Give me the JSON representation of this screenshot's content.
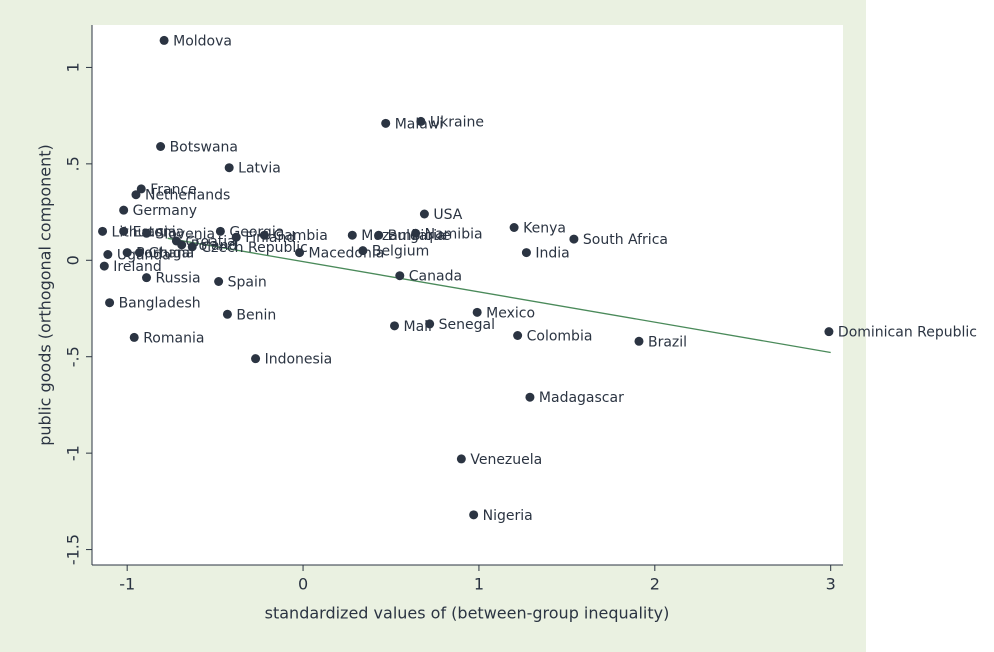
{
  "chart_data": {
    "type": "scatter",
    "x_label": "standardized values of (between-group inequality)",
    "y_label": "public goods (orthogonal component)",
    "xlim": [
      -1.2,
      3.07
    ],
    "ylim": [
      -1.58,
      1.22
    ],
    "xticks": [
      -1,
      0,
      1,
      2,
      3
    ],
    "yticks": [
      {
        "value": -1.5,
        "label": "-1.5"
      },
      -1,
      {
        "value": -0.5,
        "label": "-.5"
      },
      0,
      {
        "value": 0.5,
        "label": ".5"
      },
      1
    ],
    "color": "#2b3442",
    "points": [
      {
        "label": "Moldova",
        "x": -0.79,
        "y": 1.14
      },
      {
        "label": "Malawi",
        "x": 0.47,
        "y": 0.71
      },
      {
        "label": "Ukraine",
        "x": 0.67,
        "y": 0.72
      },
      {
        "label": "Botswana",
        "x": -0.81,
        "y": 0.59
      },
      {
        "label": "Latvia",
        "x": -0.42,
        "y": 0.48
      },
      {
        "label": "France",
        "x": -0.92,
        "y": 0.37
      },
      {
        "label": "Netherlands",
        "x": -0.95,
        "y": 0.34
      },
      {
        "label": "Germany",
        "x": -1.02,
        "y": 0.26
      },
      {
        "label": "USA",
        "x": 0.69,
        "y": 0.24
      },
      {
        "label": "Kenya",
        "x": 1.2,
        "y": 0.17
      },
      {
        "label": "South Africa",
        "x": 1.54,
        "y": 0.11
      },
      {
        "label": "India",
        "x": 1.27,
        "y": 0.04
      },
      {
        "label": "Georgia",
        "x": -0.47,
        "y": 0.15
      },
      {
        "label": "Gambia",
        "x": -0.22,
        "y": 0.13
      },
      {
        "label": "Mozambique",
        "x": 0.28,
        "y": 0.13
      },
      {
        "label": "Bulgaria",
        "x": 0.43,
        "y": 0.13
      },
      {
        "label": "Namibia",
        "x": 0.64,
        "y": 0.14
      },
      {
        "label": "Macedonia",
        "x": -0.02,
        "y": 0.04
      },
      {
        "label": "Belgium",
        "x": 0.34,
        "y": 0.05
      },
      {
        "label": "Canada",
        "x": 0.55,
        "y": -0.08
      },
      {
        "label": "Lithuania",
        "x": -1.14,
        "y": 0.15
      },
      {
        "label": "Estonia",
        "x": -1.02,
        "y": 0.15
      },
      {
        "label": "Slovenia",
        "x": -0.89,
        "y": 0.14
      },
      {
        "label": "Croatia",
        "x": -0.72,
        "y": 0.1
      },
      {
        "label": "Poland",
        "x": -0.69,
        "y": 0.08
      },
      {
        "label": "Czech Republic",
        "x": -0.63,
        "y": 0.07
      },
      {
        "label": "Finland",
        "x": -0.38,
        "y": 0.12
      },
      {
        "label": "Ireland",
        "x": -1.13,
        "y": -0.03
      },
      {
        "label": "Uganda",
        "x": -1.11,
        "y": 0.03
      },
      {
        "label": "Portugal",
        "x": -1.0,
        "y": 0.04
      },
      {
        "label": "Ghana",
        "x": -0.93,
        "y": 0.04
      },
      {
        "label": "Russia",
        "x": -0.89,
        "y": -0.09
      },
      {
        "label": "Spain",
        "x": -0.48,
        "y": -0.11
      },
      {
        "label": "Bangladesh",
        "x": -1.1,
        "y": -0.22
      },
      {
        "label": "Romania",
        "x": -0.96,
        "y": -0.4
      },
      {
        "label": "Benin",
        "x": -0.43,
        "y": -0.28
      },
      {
        "label": "Indonesia",
        "x": -0.27,
        "y": -0.51
      },
      {
        "label": "Mali",
        "x": 0.52,
        "y": -0.34
      },
      {
        "label": "Senegal",
        "x": 0.72,
        "y": -0.33
      },
      {
        "label": "Mexico",
        "x": 0.99,
        "y": -0.27
      },
      {
        "label": "Colombia",
        "x": 1.22,
        "y": -0.39
      },
      {
        "label": "Brazil",
        "x": 1.91,
        "y": -0.42
      },
      {
        "label": "Dominican Republic",
        "x": 2.99,
        "y": -0.37
      },
      {
        "label": "Madagascar",
        "x": 1.29,
        "y": -0.71
      },
      {
        "label": "Venezuela",
        "x": 0.9,
        "y": -1.03
      },
      {
        "label": "Nigeria",
        "x": 0.97,
        "y": -1.32
      }
    ],
    "fit": {
      "x": [
        -0.77,
        3.0
      ],
      "y": [
        0.114,
        -0.478
      ],
      "color": "#4a8a5a"
    }
  }
}
